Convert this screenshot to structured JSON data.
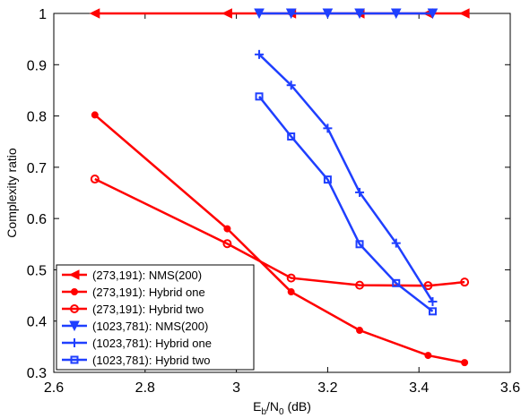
{
  "chart_data": {
    "type": "line",
    "title": "",
    "xlabel_main": "E",
    "xlabel_sub1": "b",
    "xlabel_mid": "/N",
    "xlabel_sub2": "0",
    "xlabel_tail": " (dB)",
    "ylabel": "Complexity ratio",
    "xlim": [
      2.6,
      3.6
    ],
    "ylim": [
      0.3,
      1.0
    ],
    "xticks": [
      "2.6",
      "2.8",
      "3",
      "3.2",
      "3.4",
      "3.6"
    ],
    "yticks": [
      "0.3",
      "0.4",
      "0.5",
      "0.6",
      "0.7",
      "0.8",
      "0.9",
      "1"
    ],
    "grid": false,
    "legend_position": "bottom-left",
    "colors": {
      "red": "#ff0000",
      "blue": "#1f3fff"
    },
    "series": [
      {
        "name": "(273,191): NMS(200)",
        "color": "#ff0000",
        "marker": "triangle-left",
        "x": [
          2.69,
          2.98,
          3.12,
          3.27,
          3.42,
          3.5
        ],
        "y": [
          1,
          1,
          1,
          1,
          1,
          1
        ]
      },
      {
        "name": "(273,191): Hybrid one",
        "color": "#ff0000",
        "marker": "dot",
        "x": [
          2.69,
          2.98,
          3.12,
          3.27,
          3.42,
          3.5
        ],
        "y": [
          0.802,
          0.58,
          0.457,
          0.382,
          0.333,
          0.319
        ]
      },
      {
        "name": "(273,191): Hybrid two",
        "color": "#ff0000",
        "marker": "circle",
        "x": [
          2.69,
          2.98,
          3.12,
          3.27,
          3.42,
          3.5
        ],
        "y": [
          0.677,
          0.551,
          0.484,
          0.47,
          0.469,
          0.476
        ]
      },
      {
        "name": "(1023,781): NMS(200)",
        "color": "#1f3fff",
        "marker": "triangle-down",
        "x": [
          3.05,
          3.12,
          3.2,
          3.27,
          3.35,
          3.43
        ],
        "y": [
          1,
          1,
          1,
          1,
          1,
          1
        ]
      },
      {
        "name": "(1023,781): Hybrid one",
        "color": "#1f3fff",
        "marker": "plus",
        "x": [
          3.05,
          3.12,
          3.2,
          3.27,
          3.35,
          3.43
        ],
        "y": [
          0.92,
          0.86,
          0.776,
          0.651,
          0.552,
          0.438
        ]
      },
      {
        "name": "(1023,781): Hybrid two",
        "color": "#1f3fff",
        "marker": "square",
        "x": [
          3.05,
          3.12,
          3.2,
          3.27,
          3.35,
          3.43
        ],
        "y": [
          0.838,
          0.76,
          0.676,
          0.55,
          0.474,
          0.419
        ]
      }
    ]
  }
}
